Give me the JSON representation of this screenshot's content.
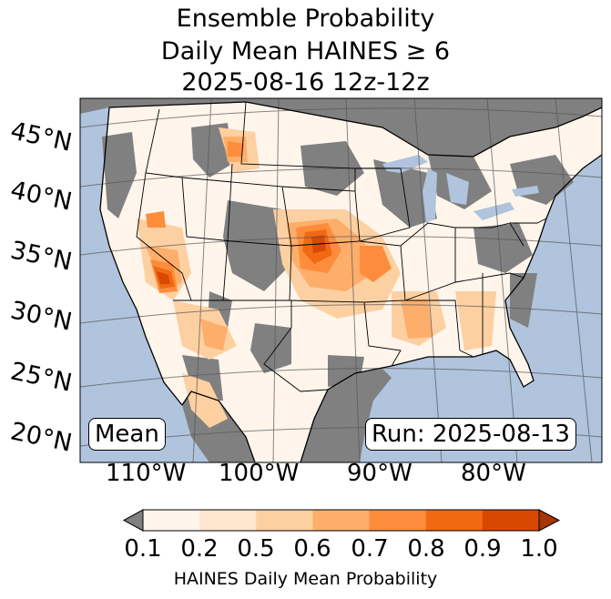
{
  "title": {
    "line1": "Ensemble Probability",
    "line2": "Daily Mean HAINES ≥ 6",
    "line3": "2025-08-16 12z-12z"
  },
  "map": {
    "lat_labels": [
      "45°N",
      "40°N",
      "35°N",
      "30°N",
      "25°N",
      "20°N"
    ],
    "lon_labels": [
      "110°W",
      "100°W",
      "90°W",
      "80°W"
    ],
    "left_box": "Mean",
    "right_box": "Run: 2025-08-13",
    "colors": {
      "ocean": "#b0c4de",
      "missing": "#808080",
      "water_lakes": "#b0c4de"
    }
  },
  "colorbar": {
    "ticks": [
      "0.1",
      "0.2",
      "0.5",
      "0.6",
      "0.7",
      "0.8",
      "0.9",
      "1.0"
    ],
    "colors": [
      "#fff5eb",
      "#fee6ce",
      "#fdd0a2",
      "#fdae6b",
      "#fd8d3c",
      "#f16913",
      "#d94801",
      "#a63603"
    ],
    "under_color": "#808080",
    "label": "HAINES Daily Mean Probability"
  }
}
